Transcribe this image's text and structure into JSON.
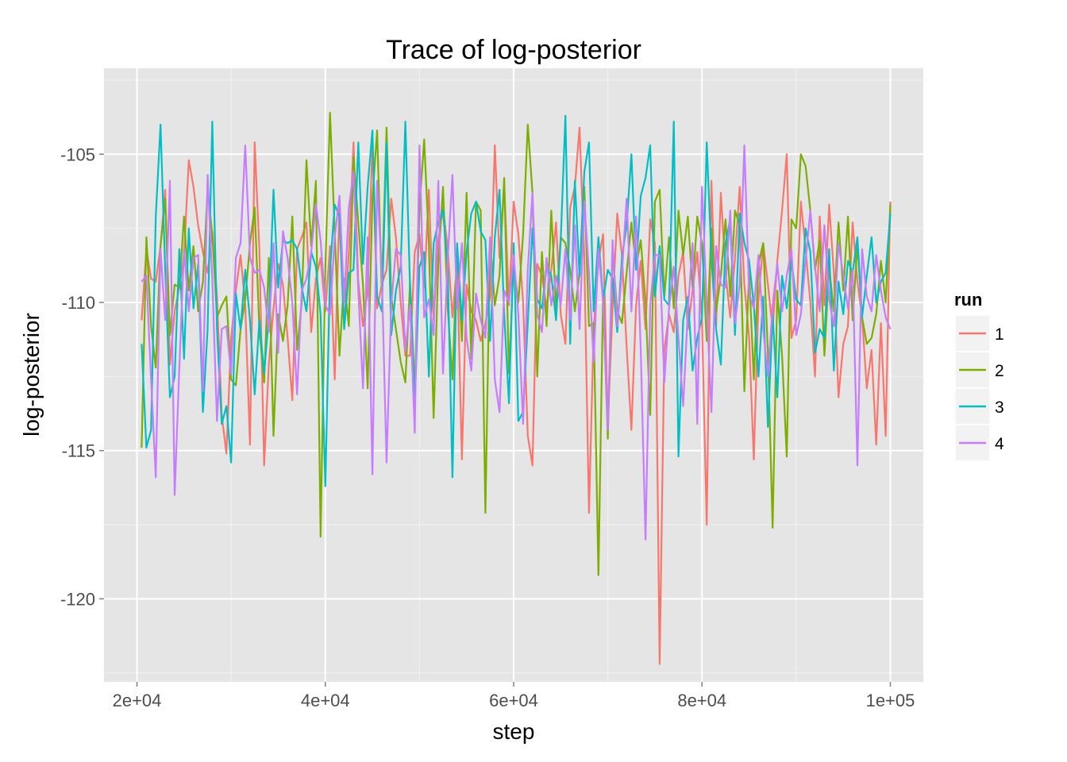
{
  "chart_data": {
    "type": "line",
    "title": "Trace of log-posterior",
    "xlabel": "step",
    "ylabel": "log-posterior",
    "xlim": [
      16500,
      103500
    ],
    "ylim": [
      -122.8,
      -102.1
    ],
    "x_ticks": [
      20000,
      40000,
      60000,
      80000,
      100000
    ],
    "x_tick_labels": [
      "2e+04",
      "4e+04",
      "6e+04",
      "8e+04",
      "1e+05"
    ],
    "y_ticks": [
      -105,
      -110,
      -115,
      -120
    ],
    "y_tick_labels": [
      "-105",
      "-110",
      "-115",
      "-120"
    ],
    "grid": true,
    "background": "#e5e5e5",
    "legend": {
      "title": "run",
      "position": "right"
    },
    "x": {
      "start": 20500,
      "step": 500,
      "count": 160
    },
    "series": [
      {
        "name": "1",
        "color": "#f8766d",
        "values": [
          -110.6,
          -108.2,
          -109.2,
          -109.3,
          -108.1,
          -106.2,
          -112.1,
          -110.3,
          -109.5,
          -108.4,
          -105.2,
          -106.1,
          -107.4,
          -108.3,
          -109.0,
          -107.6,
          -109.8,
          -113.8,
          -115.1,
          -111.2,
          -109.6,
          -108.4,
          -110.1,
          -114.8,
          -104.6,
          -108.2,
          -115.5,
          -112.1,
          -110.2,
          -108.7,
          -109.4,
          -111.2,
          -113.3,
          -108.2,
          -107.8,
          -107.3,
          -111.0,
          -109.2,
          -108.5,
          -110.3,
          -108.1,
          -112.6,
          -106.7,
          -110.8,
          -108.3,
          -104.6,
          -109.3,
          -110.8,
          -109.6,
          -104.6,
          -110.2,
          -109.4,
          -108.9,
          -106.5,
          -107.8,
          -110.0,
          -111.8,
          -111.8,
          -108.3,
          -107.7,
          -109.5,
          -106.2,
          -110.6,
          -107.9,
          -106.8,
          -108.2,
          -110.5,
          -108.7,
          -115.3,
          -109.4,
          -110.3,
          -110.6,
          -111.3,
          -110.7,
          -109.8,
          -104.7,
          -108.5,
          -106.0,
          -110.1,
          -106.6,
          -107.7,
          -110.0,
          -114.5,
          -115.5,
          -108.7,
          -109.1,
          -110.2,
          -108.9,
          -107.3,
          -110.4,
          -111.4,
          -106.8,
          -106.1,
          -104.1,
          -108.5,
          -117.1,
          -110.9,
          -108.6,
          -107.7,
          -114.1,
          -110.2,
          -107.0,
          -108.4,
          -111.5,
          -114.3,
          -110.1,
          -108.6,
          -110.9,
          -107.2,
          -108.0,
          -122.2,
          -111.6,
          -110.4,
          -111.0,
          -109.1,
          -108.3,
          -110.9,
          -109.6,
          -108.3,
          -110.6,
          -117.5,
          -105.9,
          -110.8,
          -106.3,
          -109.0,
          -110.5,
          -108.5,
          -106.1,
          -109.4,
          -111.2,
          -115.3,
          -109.9,
          -108.0,
          -109.4,
          -110.9,
          -108.6,
          -106.9,
          -105.0,
          -111.2,
          -110.6,
          -106.6,
          -108.2,
          -110.0,
          -112.5,
          -107.1,
          -110.1,
          -106.7,
          -109.0,
          -113.2,
          -111.4,
          -110.8,
          -107.3,
          -109.3,
          -110.5,
          -112.9,
          -111.6,
          -114.8,
          -110.7,
          -114.5,
          -106.6
        ]
      },
      {
        "name": "2",
        "color": "#7cae00",
        "values": [
          -114.9,
          -107.8,
          -110.8,
          -112.2,
          -108.1,
          -106.5,
          -111.1,
          -109.4,
          -109.5,
          -107.1,
          -109.6,
          -108.1,
          -110.3,
          -109.3,
          -106.2,
          -107.7,
          -110.5,
          -110.1,
          -109.8,
          -112.6,
          -112.8,
          -110.9,
          -109.9,
          -108.0,
          -106.8,
          -110.9,
          -112.7,
          -108.5,
          -114.5,
          -110.4,
          -111.3,
          -110.1,
          -107.1,
          -111.6,
          -110.0,
          -105.2,
          -108.1,
          -105.9,
          -117.9,
          -108.8,
          -103.6,
          -107.6,
          -111.8,
          -109.2,
          -110.8,
          -105.1,
          -107.3,
          -109.4,
          -112.9,
          -106.5,
          -104.2,
          -109.6,
          -104.1,
          -109.8,
          -110.9,
          -112.0,
          -112.7,
          -109.3,
          -113.0,
          -106.8,
          -104.5,
          -108.0,
          -113.9,
          -108.7,
          -106.1,
          -110.2,
          -112.6,
          -108.2,
          -111.3,
          -106.3,
          -111.9,
          -106.6,
          -106.9,
          -117.1,
          -107.9,
          -110.1,
          -109.1,
          -105.8,
          -112.4,
          -108.7,
          -110.0,
          -107.7,
          -104.0,
          -106.3,
          -112.5,
          -108.3,
          -110.8,
          -106.9,
          -110.2,
          -107.8,
          -108.0,
          -108.9,
          -110.3,
          -109.0,
          -106.1,
          -110.8,
          -110.7,
          -119.2,
          -109.6,
          -114.6,
          -108.3,
          -110.3,
          -110.7,
          -109.0,
          -107.3,
          -108.8,
          -107.9,
          -110.0,
          -113.8,
          -106.6,
          -106.2,
          -109.8,
          -107.8,
          -110.2,
          -106.9,
          -108.4,
          -107.1,
          -109.5,
          -107.1,
          -108.0,
          -111.3,
          -107.5,
          -110.3,
          -109.1,
          -107.2,
          -109.8,
          -106.9,
          -107.4,
          -113.0,
          -109.0,
          -112.6,
          -108.7,
          -108.0,
          -111.7,
          -117.6,
          -109.6,
          -111.8,
          -115.2,
          -107.2,
          -107.5,
          -105.0,
          -105.4,
          -106.9,
          -108.9,
          -107.9,
          -111.8,
          -108.8,
          -110.3,
          -107.3,
          -109.6,
          -107.1,
          -110.6,
          -108.0,
          -110.5,
          -111.4,
          -111.2,
          -110.4,
          -108.6,
          -110.0,
          -106.7
        ]
      },
      {
        "name": "3",
        "color": "#00bfc4",
        "values": [
          -111.4,
          -114.9,
          -114.3,
          -107.1,
          -104.0,
          -108.9,
          -113.2,
          -112.5,
          -108.2,
          -111.9,
          -107.5,
          -110.2,
          -108.7,
          -113.7,
          -110.9,
          -103.9,
          -110.9,
          -114.1,
          -113.5,
          -115.4,
          -109.7,
          -110.9,
          -108.9,
          -110.6,
          -113.1,
          -110.6,
          -112.4,
          -110.5,
          -106.2,
          -109.5,
          -107.9,
          -108.0,
          -107.9,
          -108.2,
          -109.5,
          -110.3,
          -108.3,
          -108.8,
          -110.4,
          -116.2,
          -108.9,
          -106.7,
          -107.1,
          -110.9,
          -109.0,
          -108.9,
          -104.6,
          -108.7,
          -106.1,
          -104.2,
          -109.8,
          -110.3,
          -104.6,
          -111.1,
          -109.6,
          -108.8,
          -103.9,
          -109.5,
          -113.4,
          -108.8,
          -108.3,
          -112.5,
          -108.0,
          -107.3,
          -106.9,
          -108.9,
          -115.9,
          -108.0,
          -110.6,
          -108.3,
          -107.0,
          -106.6,
          -107.6,
          -107.9,
          -111.3,
          -107.8,
          -106.2,
          -110.4,
          -113.4,
          -108.0,
          -114.0,
          -113.7,
          -110.7,
          -107.5,
          -109.9,
          -110.2,
          -108.8,
          -109.1,
          -110.6,
          -107.9,
          -103.7,
          -111.4,
          -105.9,
          -109.1,
          -105.6,
          -104.6,
          -110.3,
          -107.8,
          -109.9,
          -108.9,
          -109.2,
          -111.0,
          -108.5,
          -107.4,
          -105.0,
          -108.9,
          -106.4,
          -105.8,
          -104.7,
          -109.8,
          -108.1,
          -109.9,
          -110.1,
          -103.9,
          -115.2,
          -110.6,
          -109.8,
          -112.3,
          -111.2,
          -110.5,
          -104.6,
          -108.5,
          -110.9,
          -112.1,
          -108.0,
          -107.2,
          -111.1,
          -107.0,
          -108.0,
          -108.6,
          -110.1,
          -112.5,
          -109.8,
          -114.2,
          -110.4,
          -113.2,
          -109.1,
          -110.2,
          -108.6,
          -109.9,
          -110.1,
          -107.5,
          -108.3,
          -111.7,
          -110.9,
          -111.2,
          -108.2,
          -112.3,
          -109.3,
          -110.4,
          -108.6,
          -109.0,
          -107.8,
          -110.5,
          -109.1,
          -107.8,
          -110.0,
          -109.3,
          -109.0,
          -107.0
        ]
      },
      {
        "name": "4",
        "color": "#c77cff",
        "values": [
          -109.3,
          -109.1,
          -112.6,
          -115.9,
          -108.2,
          -110.6,
          -105.9,
          -116.5,
          -112.2,
          -108.2,
          -110.3,
          -108.5,
          -108.4,
          -113.0,
          -105.7,
          -109.2,
          -114.0,
          -110.9,
          -110.8,
          -112.4,
          -108.5,
          -108.0,
          -104.7,
          -108.5,
          -109.0,
          -108.9,
          -109.5,
          -111.0,
          -108.0,
          -111.7,
          -107.6,
          -108.5,
          -110.0,
          -113.1,
          -109.6,
          -109.2,
          -108.3,
          -106.7,
          -107.9,
          -110.1,
          -110.4,
          -107.8,
          -106.4,
          -110.0,
          -106.8,
          -105.6,
          -109.6,
          -112.9,
          -107.8,
          -115.8,
          -105.9,
          -109.0,
          -115.4,
          -110.1,
          -108.2,
          -108.4,
          -111.6,
          -110.1,
          -114.4,
          -104.7,
          -110.5,
          -109.9,
          -111.1,
          -105.9,
          -112.4,
          -108.5,
          -105.7,
          -110.2,
          -108.0,
          -111.2,
          -112.3,
          -109.7,
          -110.6,
          -111.2,
          -107.8,
          -112.6,
          -113.7,
          -109.6,
          -110.0,
          -108.4,
          -110.4,
          -114.1,
          -108.9,
          -106.3,
          -110.4,
          -111.0,
          -108.5,
          -110.1,
          -109.1,
          -110.1,
          -108.2,
          -110.6,
          -107.4,
          -110.9,
          -106.6,
          -109.0,
          -112.0,
          -108.2,
          -110.0,
          -114.3,
          -107.9,
          -110.8,
          -109.0,
          -106.5,
          -110.3,
          -107.1,
          -111.6,
          -118.0,
          -110.1,
          -108.4,
          -108.4,
          -112.7,
          -110.2,
          -108.8,
          -111.2,
          -113.5,
          -110.3,
          -108.0,
          -114.1,
          -106.1,
          -110.1,
          -113.7,
          -108.1,
          -109.4,
          -109.5,
          -106.9,
          -110.7,
          -109.4,
          -104.7,
          -109.7,
          -110.2,
          -108.4,
          -110.9,
          -112.5,
          -110.1,
          -108.7,
          -110.3,
          -109.1,
          -108.2,
          -111.1,
          -110.4,
          -108.6,
          -106.9,
          -108.8,
          -110.3,
          -107.4,
          -109.9,
          -110.8,
          -108.0,
          -109.1,
          -110.2,
          -108.9,
          -115.5,
          -108.2,
          -109.8,
          -110.3,
          -108.4,
          -109.6,
          -110.5,
          -110.9
        ]
      }
    ]
  }
}
